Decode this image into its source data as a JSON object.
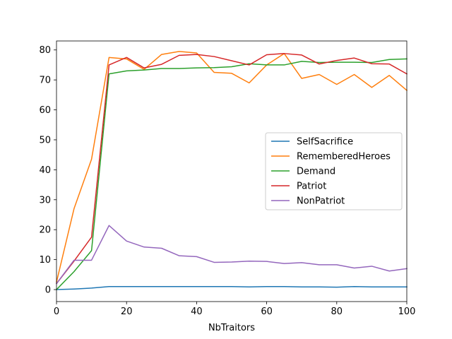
{
  "chart_data": {
    "type": "line",
    "title": "",
    "xlabel": "NbTraitors",
    "ylabel": "",
    "xlim": [
      0,
      100
    ],
    "ylim": [
      -4,
      83
    ],
    "xticks": [
      0,
      20,
      40,
      60,
      80,
      100
    ],
    "yticks": [
      0,
      10,
      20,
      30,
      40,
      50,
      60,
      70,
      80
    ],
    "grid": false,
    "legend_position": "center-right",
    "x": [
      0,
      5,
      10,
      15,
      20,
      25,
      30,
      35,
      40,
      45,
      50,
      55,
      60,
      65,
      70,
      75,
      80,
      85,
      90,
      95,
      100
    ],
    "series": [
      {
        "name": "SelfSacrifice",
        "color": "#1f77b4",
        "values": [
          0,
          0.2,
          0.5,
          1.0,
          1.0,
          1.0,
          1.0,
          1.0,
          1.0,
          1.0,
          1.0,
          0.9,
          1.0,
          1.0,
          0.9,
          0.9,
          0.8,
          1.0,
          0.9,
          0.9,
          0.9
        ]
      },
      {
        "name": "RememberedHeroes",
        "color": "#ff7f0e",
        "values": [
          2.5,
          27,
          43.5,
          77.5,
          77,
          73.5,
          78.5,
          79.5,
          79,
          72.5,
          72.2,
          69,
          75,
          78.8,
          70.5,
          71.8,
          68.5,
          71.8,
          67.5,
          71.5,
          66.5
        ]
      },
      {
        "name": "Demand",
        "color": "#2ca02c",
        "values": [
          0,
          6,
          13,
          72,
          73,
          73.3,
          73.8,
          73.8,
          74,
          74.1,
          74.4,
          75.4,
          75,
          75,
          76.2,
          75.8,
          75.9,
          75.9,
          75.8,
          76.8,
          77
        ]
      },
      {
        "name": "Patriot",
        "color": "#d62728",
        "values": [
          2,
          9.5,
          17.5,
          75,
          77.5,
          74,
          75.2,
          78.2,
          78.5,
          77.8,
          76.4,
          75,
          78.4,
          78.8,
          78.3,
          75.3,
          76.5,
          77.3,
          75.4,
          75.3,
          72
        ]
      },
      {
        "name": "NonPatriot",
        "color": "#9467bd",
        "values": [
          2,
          9.8,
          9.8,
          21.4,
          16.2,
          14.2,
          13.8,
          11.3,
          11.0,
          9.1,
          9.2,
          9.5,
          9.4,
          8.7,
          9.0,
          8.3,
          8.3,
          7.2,
          7.8,
          6.2,
          7.0
        ]
      }
    ]
  }
}
